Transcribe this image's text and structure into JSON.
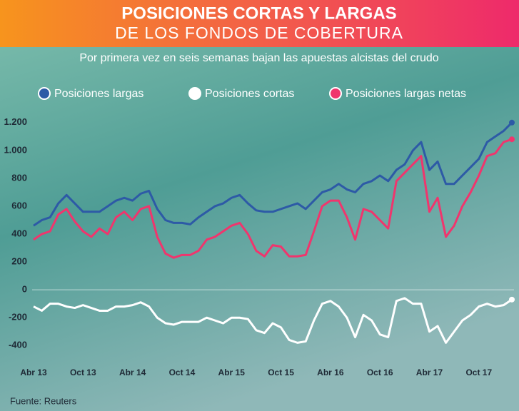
{
  "chart_data": {
    "type": "line",
    "title": "POSICIONES CORTAS Y LARGAS",
    "subtitle": "DE LOS FONDOS DE COBERTURA",
    "note": "Por primera vez en seis semanas bajan las apuestas alcistas del crudo",
    "source": "Fuente: Reuters",
    "categories": [
      "Abr 13",
      null,
      null,
      null,
      null,
      null,
      "Oct 13",
      null,
      null,
      null,
      null,
      null,
      "Abr 14",
      null,
      null,
      null,
      null,
      null,
      "Oct 14",
      null,
      null,
      null,
      null,
      null,
      "Abr 15",
      null,
      null,
      null,
      null,
      null,
      "Oct 15",
      null,
      null,
      null,
      null,
      null,
      "Abr 16",
      null,
      null,
      null,
      null,
      null,
      "Oct 16",
      null,
      null,
      null,
      null,
      null,
      "Abr 17",
      null,
      null,
      null,
      null,
      null,
      "Oct 17",
      null,
      null,
      null,
      null
    ],
    "series": [
      {
        "name": "Posiciones largas",
        "color": "#2d5aa6",
        "values": [
          460,
          500,
          520,
          620,
          680,
          620,
          560,
          560,
          560,
          600,
          640,
          660,
          640,
          690,
          710,
          580,
          500,
          480,
          480,
          470,
          520,
          560,
          600,
          620,
          660,
          680,
          620,
          570,
          560,
          560,
          580,
          600,
          620,
          580,
          640,
          700,
          720,
          760,
          720,
          700,
          760,
          780,
          820,
          780,
          860,
          900,
          1000,
          1060,
          860,
          920,
          760,
          760,
          820,
          880,
          940,
          1060,
          1100,
          1140,
          1200
        ]
      },
      {
        "name": "Posiciones cortas",
        "color": "#ffffff",
        "values": [
          -120,
          -150,
          -100,
          -100,
          -120,
          -130,
          -110,
          -130,
          -150,
          -150,
          -120,
          -120,
          -110,
          -90,
          -120,
          -200,
          -240,
          -250,
          -230,
          -230,
          -230,
          -200,
          -220,
          -240,
          -200,
          -200,
          -210,
          -290,
          -310,
          -240,
          -270,
          -360,
          -380,
          -370,
          -220,
          -100,
          -80,
          -120,
          -200,
          -340,
          -180,
          -220,
          -320,
          -340,
          -80,
          -60,
          -100,
          -100,
          -300,
          -260,
          -380,
          -300,
          -220,
          -180,
          -120,
          -100,
          -120,
          -110,
          -70
        ]
      },
      {
        "name": "Posiciones largas netas",
        "color": "#f0356d",
        "values": [
          360,
          400,
          420,
          540,
          580,
          490,
          420,
          380,
          440,
          400,
          520,
          560,
          500,
          580,
          600,
          380,
          260,
          230,
          250,
          250,
          280,
          360,
          380,
          420,
          460,
          480,
          400,
          280,
          240,
          320,
          310,
          240,
          240,
          250,
          420,
          600,
          640,
          640,
          520,
          360,
          580,
          560,
          500,
          440,
          780,
          840,
          900,
          960,
          560,
          660,
          380,
          460,
          600,
          700,
          820,
          960,
          980,
          1060,
          1080
        ]
      }
    ],
    "ylim": [
      -460,
      1250
    ],
    "yticks": [
      -400,
      -200,
      0,
      200,
      400,
      600,
      800,
      {
        "value": 1000,
        "label": "1.000"
      },
      {
        "value": 1200,
        "label": "1.200"
      }
    ],
    "grid": false
  }
}
